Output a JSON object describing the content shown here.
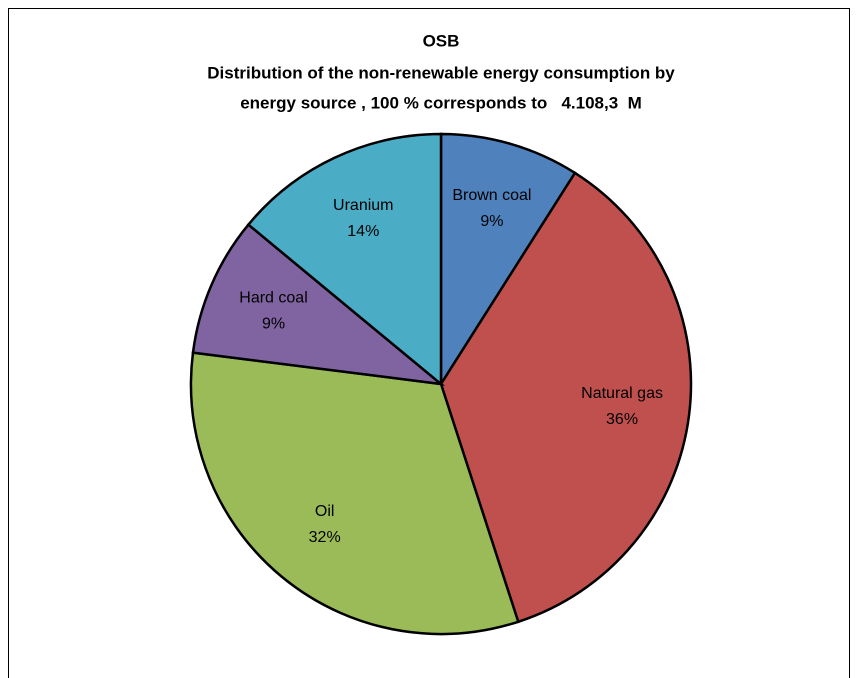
{
  "chart_data": {
    "type": "pie",
    "title": [
      "OSB",
      "Distribution of the non-renewable energy consumption by",
      "energy source , 100 % corresponds to   4.108,3  M"
    ],
    "categories": [
      "Brown coal",
      "Natural gas",
      "Oil",
      "Hard coal",
      "Uranium"
    ],
    "values": [
      9,
      36,
      32,
      9,
      14
    ],
    "value_labels": [
      "9%",
      "36%",
      "32%",
      "9%",
      "14%"
    ],
    "colors": [
      "#4f81bd",
      "#c0504d",
      "#9bbb59",
      "#8064a2",
      "#4bacc6"
    ]
  }
}
